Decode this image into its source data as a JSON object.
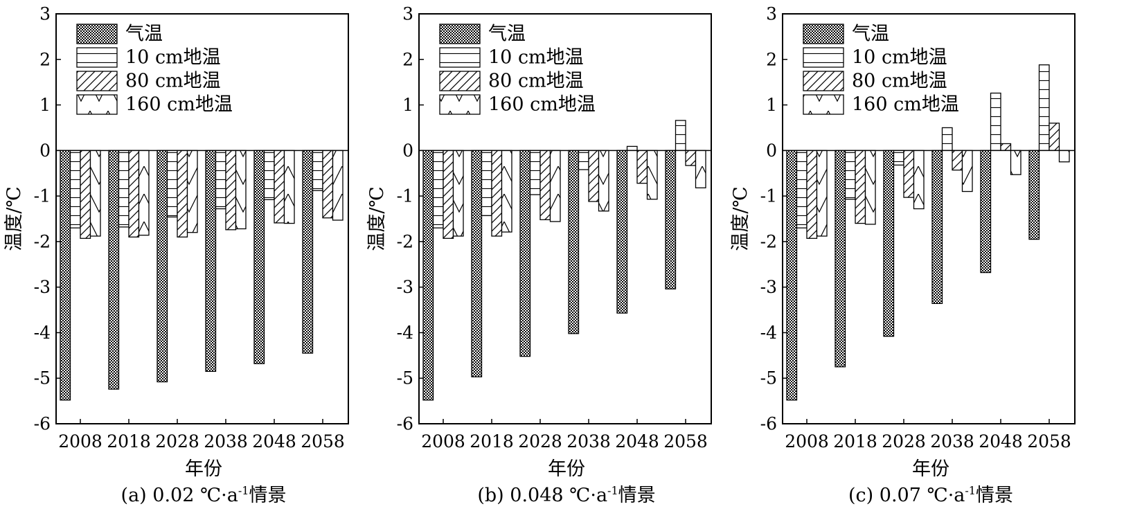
{
  "chart_data": [
    {
      "type": "bar",
      "caption_prefix": "(a) 0.02 ℃·a",
      "caption_sup": "-1",
      "caption_suffix": "情景",
      "xlabel": "年份",
      "ylabel": "温度/℃",
      "ylim": [
        -6,
        3
      ],
      "yticks": [
        "3",
        "2",
        "1",
        "0",
        "-1",
        "-2",
        "-3",
        "-4",
        "-5",
        "-6"
      ],
      "categories": [
        "2008",
        "2018",
        "2028",
        "2038",
        "2048",
        "2058"
      ],
      "legend_position": "top-left",
      "series": [
        {
          "name": "气温",
          "pattern": "dots",
          "values": [
            -5.48,
            -5.24,
            -5.08,
            -4.85,
            -4.68,
            -4.45
          ]
        },
        {
          "name": "10 cm地温",
          "pattern": "hlines",
          "values": [
            -1.7,
            -1.68,
            -1.46,
            -1.28,
            -1.08,
            -0.88
          ]
        },
        {
          "name": "80 cm地温",
          "pattern": "diag",
          "values": [
            -1.93,
            -1.9,
            -1.9,
            -1.74,
            -1.59,
            -1.48
          ]
        },
        {
          "name": "160 cm地温",
          "pattern": "vcheck",
          "values": [
            -1.88,
            -1.86,
            -1.8,
            -1.72,
            -1.6,
            -1.53
          ]
        }
      ]
    },
    {
      "type": "bar",
      "caption_prefix": "(b) 0.048 ℃·a",
      "caption_sup": "-1",
      "caption_suffix": "情景",
      "xlabel": "年份",
      "ylabel": "温度/℃",
      "ylim": [
        -6,
        3
      ],
      "yticks": [
        "3",
        "2",
        "1",
        "0",
        "-1",
        "-2",
        "-3",
        "-4",
        "-5",
        "-6"
      ],
      "categories": [
        "2008",
        "2018",
        "2028",
        "2038",
        "2048",
        "2058"
      ],
      "legend_position": "top-left",
      "series": [
        {
          "name": "气温",
          "pattern": "dots",
          "values": [
            -5.48,
            -4.97,
            -4.52,
            -4.02,
            -3.57,
            -3.04
          ]
        },
        {
          "name": "10 cm地温",
          "pattern": "hlines",
          "values": [
            -1.7,
            -1.43,
            -0.97,
            -0.42,
            0.09,
            0.66
          ]
        },
        {
          "name": "80 cm地温",
          "pattern": "diag",
          "values": [
            -1.93,
            -1.88,
            -1.52,
            -1.12,
            -0.72,
            -0.33
          ]
        },
        {
          "name": "160 cm地温",
          "pattern": "vcheck",
          "values": [
            -1.88,
            -1.79,
            -1.56,
            -1.33,
            -1.07,
            -0.82
          ]
        }
      ]
    },
    {
      "type": "bar",
      "caption_prefix": "(c) 0.07 ℃·a",
      "caption_sup": "-1",
      "caption_suffix": "情景",
      "xlabel": "年份",
      "ylabel": "温度/℃",
      "ylim": [
        -6,
        3
      ],
      "yticks": [
        "3",
        "2",
        "1",
        "0",
        "-1",
        "-2",
        "-3",
        "-4",
        "-5",
        "-6"
      ],
      "categories": [
        "2008",
        "2018",
        "2028",
        "2038",
        "2048",
        "2058"
      ],
      "legend_position": "top-left",
      "series": [
        {
          "name": "气温",
          "pattern": "dots",
          "values": [
            -5.48,
            -4.75,
            -4.08,
            -3.36,
            -2.68,
            -1.95
          ]
        },
        {
          "name": "10 cm地温",
          "pattern": "hlines",
          "values": [
            -1.7,
            -1.07,
            -0.32,
            0.5,
            1.26,
            1.88
          ]
        },
        {
          "name": "80 cm地温",
          "pattern": "diag",
          "values": [
            -1.93,
            -1.6,
            -1.03,
            -0.43,
            0.15,
            0.6
          ]
        },
        {
          "name": "160 cm地温",
          "pattern": "vcheck",
          "values": [
            -1.88,
            -1.62,
            -1.28,
            -0.9,
            -0.53,
            -0.25
          ]
        }
      ]
    }
  ]
}
